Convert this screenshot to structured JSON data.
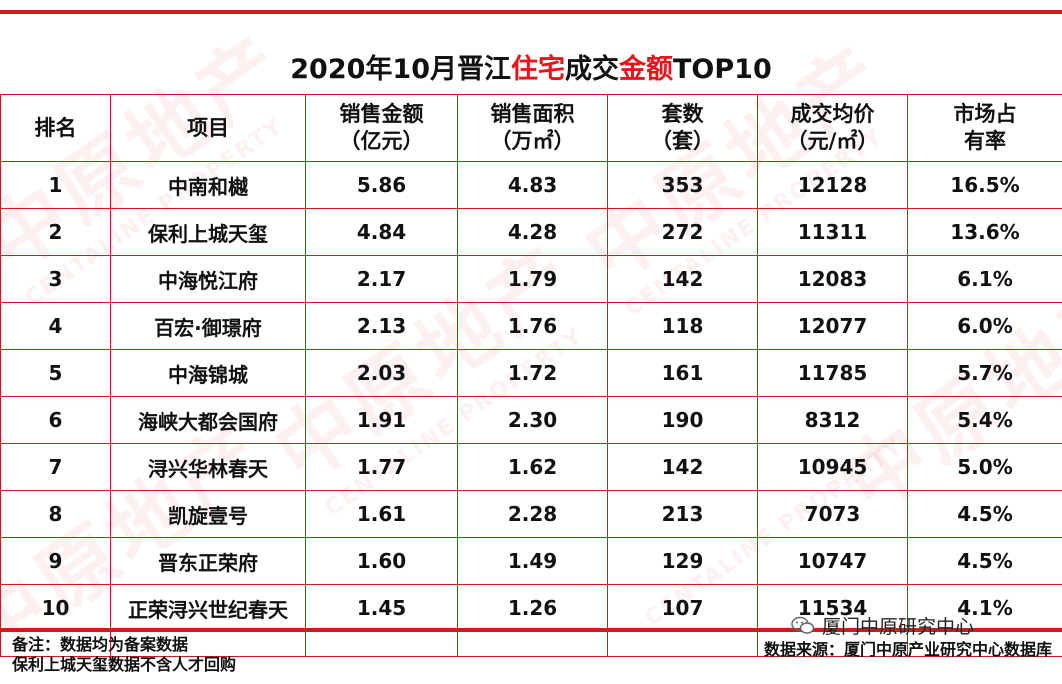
{
  "title": {
    "prefix": "2020年10月晋江",
    "highlight1": "住宅",
    "middle": "成交",
    "highlight2": "金额",
    "suffix": "TOP10"
  },
  "colors": {
    "accent": "#c81e1e",
    "highlight": "#e8141b"
  },
  "table": {
    "headers": [
      [
        "排名"
      ],
      [
        "项目"
      ],
      [
        "销售金额",
        "（亿元）"
      ],
      [
        "销售面积",
        "（万㎡）"
      ],
      [
        "套数",
        "（套）"
      ],
      [
        "成交均价",
        "（元/㎡）"
      ],
      [
        "市场占",
        "有率"
      ]
    ],
    "rows": [
      [
        "1",
        "中南和樾",
        "5.86",
        "4.83",
        "353",
        "12128",
        "16.5%"
      ],
      [
        "2",
        "保利上城天玺",
        "4.84",
        "4.28",
        "272",
        "11311",
        "13.6%"
      ],
      [
        "3",
        "中海悦江府",
        "2.17",
        "1.79",
        "142",
        "12083",
        "6.1%"
      ],
      [
        "4",
        "百宏·御璟府",
        "2.13",
        "1.76",
        "118",
        "12077",
        "6.0%"
      ],
      [
        "5",
        "中海锦城",
        "2.03",
        "1.72",
        "161",
        "11785",
        "5.7%"
      ],
      [
        "6",
        "海峡大都会国府",
        "1.91",
        "2.30",
        "190",
        "8312",
        "5.4%"
      ],
      [
        "7",
        "浔兴华林春天",
        "1.77",
        "1.62",
        "142",
        "10945",
        "5.0%"
      ],
      [
        "8",
        "凯旋壹号",
        "1.61",
        "2.28",
        "213",
        "7073",
        "4.5%"
      ],
      [
        "9",
        "晋东正荣府",
        "1.60",
        "1.49",
        "129",
        "10747",
        "4.5%"
      ],
      [
        "10",
        "正荣浔兴世纪春天",
        "1.45",
        "1.26",
        "107",
        "11534",
        "4.1%"
      ]
    ]
  },
  "notes": [
    "备注：数据均为备案数据",
    "保利上城天玺数据不含人才回购"
  ],
  "source": "数据来源：厦门中原产业研究中心数据库",
  "wechat_account": "厦门中原研究中心",
  "watermark": {
    "text": "中原地产",
    "sub": "CENTALINE PROPERTY"
  }
}
